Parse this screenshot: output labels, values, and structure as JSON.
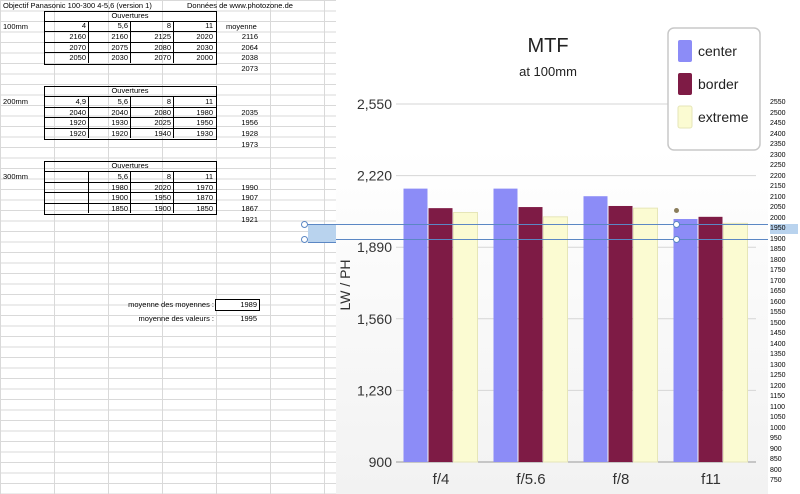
{
  "sheet": {
    "title": "Objectif Panasonic 100-300 4-5,6 (version 1)",
    "source": "Données de www.photozone.de",
    "tables": [
      {
        "label": "100mm",
        "header": "Ouvertures",
        "apertures": [
          "4",
          "5,6",
          "8",
          "11"
        ],
        "avg_header": "moyenne",
        "rows": [
          {
            "values": [
              "2160",
              "2160",
              "2125",
              "2020"
            ],
            "avg": "2116"
          },
          {
            "values": [
              "2070",
              "2075",
              "2080",
              "2030"
            ],
            "avg": "2064"
          },
          {
            "values": [
              "2050",
              "2030",
              "2070",
              "2000"
            ],
            "avg": "2038"
          }
        ],
        "overall": "2073"
      },
      {
        "label": "200mm",
        "header": "Ouvertures",
        "apertures": [
          "4,9",
          "5,6",
          "8",
          "11"
        ],
        "avg_header": "",
        "rows": [
          {
            "values": [
              "2040",
              "2040",
              "2080",
              "1980"
            ],
            "avg": "2035"
          },
          {
            "values": [
              "1920",
              "1930",
              "2025",
              "1950"
            ],
            "avg": "1956"
          },
          {
            "values": [
              "1920",
              "1920",
              "1940",
              "1930"
            ],
            "avg": "1928"
          }
        ],
        "overall": "1973"
      },
      {
        "label": "300mm",
        "header": "Ouvertures",
        "apertures": [
          "",
          "5,6",
          "8",
          "11"
        ],
        "avg_header": "",
        "rows": [
          {
            "values": [
              "",
              "1980",
              "2020",
              "1970"
            ],
            "avg": "1990"
          },
          {
            "values": [
              "",
              "1900",
              "1950",
              "1870"
            ],
            "avg": "1907"
          },
          {
            "values": [
              "",
              "1850",
              "1900",
              "1850"
            ],
            "avg": "1867"
          }
        ],
        "overall": "1921"
      }
    ],
    "summary": [
      {
        "label": "moyenne des moyennes :",
        "value": "1989"
      },
      {
        "label": "moyenne des valeurs :",
        "value": "1995"
      }
    ],
    "scale_values": [
      "2550",
      "2500",
      "2450",
      "2400",
      "2350",
      "2300",
      "2250",
      "2200",
      "2150",
      "2100",
      "2050",
      "2000",
      "1950",
      "1900",
      "1850",
      "1800",
      "1750",
      "1700",
      "1650",
      "1600",
      "1550",
      "1500",
      "1450",
      "1400",
      "1350",
      "1300",
      "1250",
      "1200",
      "1150",
      "1100",
      "1050",
      "1000",
      "950",
      "900",
      "850",
      "800",
      "750"
    ],
    "selected_scale_value": "1950"
  },
  "chart_data": {
    "type": "bar",
    "title": "MTF",
    "subtitle": "at 100mm",
    "ylabel": "LW / PH",
    "xlabel": "",
    "categories": [
      "f/4",
      "f/5.6",
      "f/8",
      "f11"
    ],
    "series": [
      {
        "name": "center",
        "color": "#8c8cf7",
        "values": [
          2160,
          2160,
          2125,
          2020
        ]
      },
      {
        "name": "border",
        "color": "#7e1b45",
        "values": [
          2070,
          2075,
          2080,
          2030
        ]
      },
      {
        "name": "extreme",
        "color": "#fbfbd2",
        "values": [
          2050,
          2030,
          2070,
          2000
        ]
      }
    ],
    "ylim": [
      900,
      2550
    ],
    "yticks": [
      "2,550",
      "2,220",
      "1,890",
      "1,560",
      "1,230",
      "900"
    ],
    "ytick_values": [
      2550,
      2220,
      1890,
      1560,
      1230,
      900
    ],
    "legend": "top-right",
    "grid": true
  }
}
